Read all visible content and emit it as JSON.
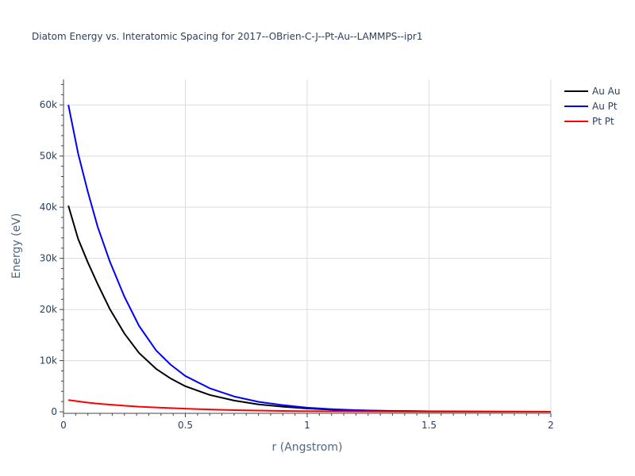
{
  "chart_data": {
    "type": "line",
    "title": "Diatom Energy vs. Interatomic Spacing for 2017--OBrien-C-J--Pt-Au--LAMMPS--ipr1",
    "xlabel": "r (Angstrom)",
    "ylabel": "Energy (eV)",
    "xlim": [
      0,
      2
    ],
    "ylim": [
      -300,
      65000
    ],
    "xticks": [
      0,
      0.5,
      1,
      1.5,
      2
    ],
    "xtick_labels": [
      "0",
      "0.5",
      "1",
      "1.5",
      "2"
    ],
    "yticks": [
      0,
      10000,
      20000,
      30000,
      40000,
      50000,
      60000
    ],
    "ytick_labels": [
      "0",
      "10k",
      "20k",
      "30k",
      "40k",
      "50k",
      "60k"
    ],
    "grid": true,
    "legend_position": "top-right",
    "series": [
      {
        "name": "Au Au",
        "color": "#000000",
        "x": [
          0.02,
          0.06,
          0.1,
          0.14,
          0.19,
          0.25,
          0.31,
          0.38,
          0.44,
          0.5,
          0.6,
          0.7,
          0.8,
          0.9,
          1.0,
          1.1,
          1.2,
          1.3,
          1.4,
          1.5,
          1.6,
          1.8,
          2.0
        ],
        "y": [
          40300,
          33800,
          29200,
          25000,
          20100,
          15300,
          11500,
          8400,
          6500,
          5000,
          3300,
          2200,
          1450,
          1000,
          650,
          420,
          280,
          180,
          120,
          80,
          55,
          25,
          10
        ]
      },
      {
        "name": "Au Pt",
        "color": "#0000ff",
        "x": [
          0.02,
          0.06,
          0.1,
          0.14,
          0.19,
          0.25,
          0.31,
          0.38,
          0.44,
          0.5,
          0.6,
          0.7,
          0.8,
          0.9,
          1.0,
          1.1,
          1.2,
          1.3,
          1.4,
          1.5,
          1.6,
          1.8,
          2.0
        ],
        "y": [
          60000,
          50500,
          43000,
          36200,
          29400,
          22500,
          16800,
          12000,
          9200,
          7000,
          4600,
          3000,
          1950,
          1300,
          800,
          520,
          330,
          210,
          140,
          90,
          60,
          25,
          10
        ]
      },
      {
        "name": "Pt Pt",
        "color": "#ff0000",
        "x": [
          0.02,
          0.06,
          0.1,
          0.14,
          0.19,
          0.25,
          0.31,
          0.38,
          0.44,
          0.5,
          0.6,
          0.7,
          0.8,
          0.9,
          1.0,
          1.1,
          1.2,
          1.3,
          1.4,
          1.5,
          1.6,
          1.8,
          2.0
        ],
        "y": [
          2300,
          2050,
          1800,
          1600,
          1400,
          1200,
          1000,
          850,
          730,
          620,
          450,
          330,
          240,
          170,
          120,
          85,
          60,
          40,
          28,
          20,
          14,
          7,
          3
        ]
      }
    ]
  }
}
